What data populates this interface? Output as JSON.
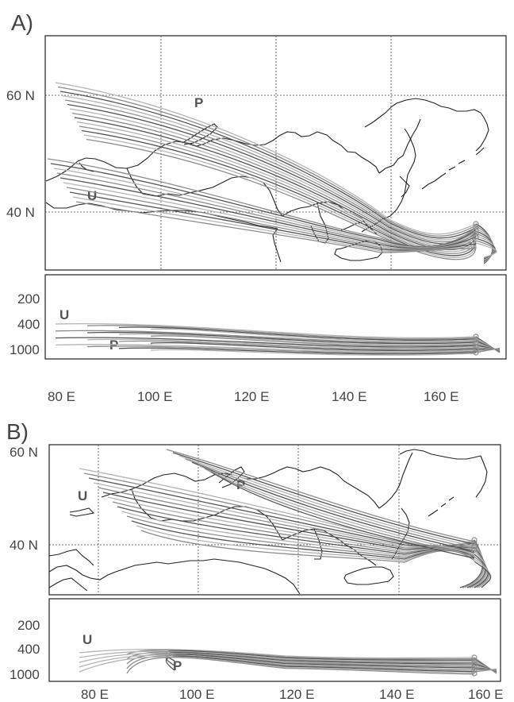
{
  "panels": [
    {
      "label": "A)",
      "map_lat_ticks": [
        "60 N",
        "40 N"
      ],
      "map_markers": [
        "P",
        "U"
      ],
      "profile_ticks": [
        "200",
        "400",
        "1000"
      ],
      "profile_markers": [
        "U",
        "P"
      ],
      "lon_ticks": [
        "80 E",
        "100 E",
        "120 E",
        "140 E",
        "160 E"
      ]
    },
    {
      "label": "B)",
      "map_lat_ticks": [
        "60 N",
        "40 N"
      ],
      "map_markers": [
        "P",
        "U"
      ],
      "profile_ticks": [
        "200",
        "400",
        "1000"
      ],
      "profile_markers": [
        "U",
        "P"
      ],
      "lon_ticks": [
        "80 E",
        "100 E",
        "120 E",
        "140 E",
        "160 E"
      ]
    }
  ],
  "colors": {
    "trajectory_light": "#b4b4b4",
    "trajectory_mid": "#8c8c8c",
    "trajectory_dark": "#555555",
    "coastline": "#222222"
  }
}
